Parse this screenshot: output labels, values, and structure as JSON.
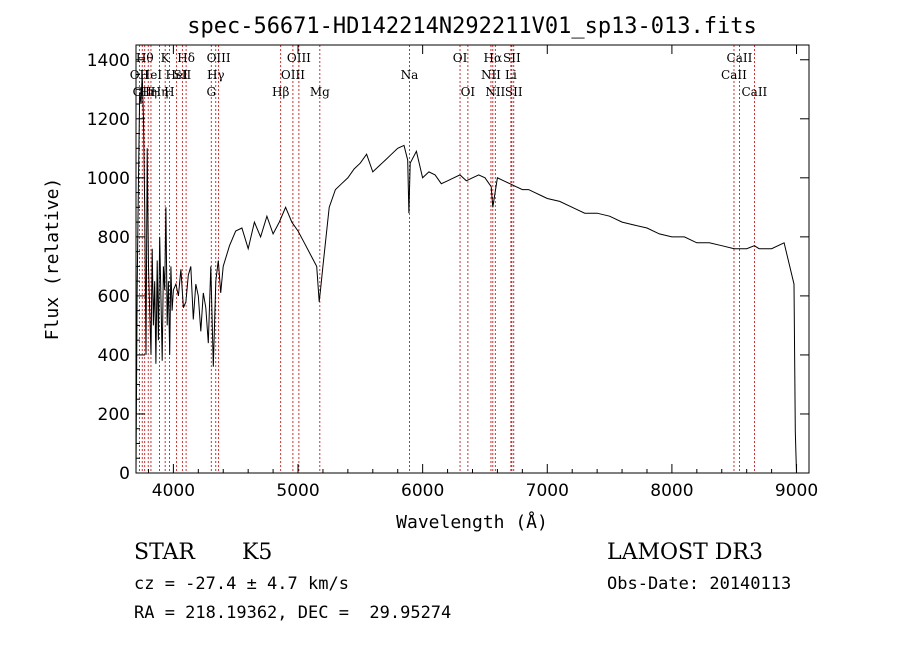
{
  "chart_data": {
    "type": "line",
    "title": "spec-56671-HD142214N292211V01_sp13-013.fits",
    "xlabel": "Wavelength (Å)",
    "ylabel": "Flux (relative)",
    "xlim": [
      3700,
      9100
    ],
    "ylim": [
      0,
      1450
    ],
    "xticks": [
      4000,
      5000,
      6000,
      7000,
      8000,
      9000
    ],
    "yticks": [
      0,
      200,
      400,
      600,
      800,
      1000,
      1200,
      1400
    ],
    "series": [
      {
        "x": [
          3700,
          3710,
          3720,
          3730,
          3740,
          3750,
          3760,
          3770,
          3780,
          3790,
          3800,
          3810,
          3820,
          3830,
          3840,
          3850,
          3860,
          3870,
          3880,
          3890,
          3900,
          3910,
          3920,
          3930,
          3940,
          3950,
          3960,
          3970,
          3980,
          3990,
          4000,
          4020,
          4040,
          4060,
          4080,
          4100,
          4120,
          4140,
          4160,
          4180,
          4200,
          4220,
          4240,
          4260,
          4280,
          4300,
          4320,
          4340,
          4360,
          4380,
          4400,
          4450,
          4500,
          4550,
          4600,
          4650,
          4700,
          4750,
          4800,
          4850,
          4900,
          4950,
          5000,
          5050,
          5100,
          5150,
          5170,
          5180,
          5200,
          5250,
          5300,
          5350,
          5400,
          5450,
          5500,
          5550,
          5600,
          5650,
          5700,
          5750,
          5800,
          5850,
          5880,
          5890,
          5900,
          5950,
          6000,
          6050,
          6100,
          6150,
          6200,
          6250,
          6300,
          6350,
          6400,
          6450,
          6500,
          6550,
          6563,
          6600,
          6650,
          6700,
          6750,
          6800,
          6850,
          6900,
          6950,
          7000,
          7100,
          7200,
          7300,
          7400,
          7500,
          7600,
          7700,
          7800,
          7900,
          8000,
          8100,
          8200,
          8300,
          8400,
          8500,
          8542,
          8600,
          8662,
          8700,
          8800,
          8900,
          8980,
          8990,
          9000
        ],
        "y": [
          0,
          640,
          1000,
          1290,
          1250,
          1350,
          1200,
          900,
          400,
          1100,
          700,
          550,
          400,
          760,
          500,
          650,
          370,
          720,
          450,
          800,
          600,
          380,
          700,
          620,
          900,
          500,
          650,
          400,
          700,
          550,
          620,
          640,
          600,
          690,
          560,
          580,
          670,
          700,
          520,
          640,
          600,
          480,
          610,
          560,
          440,
          700,
          360,
          650,
          720,
          610,
          700,
          770,
          820,
          830,
          760,
          850,
          800,
          870,
          810,
          850,
          900,
          850,
          820,
          780,
          740,
          700,
          580,
          620,
          700,
          900,
          960,
          980,
          1000,
          1030,
          1050,
          1080,
          1020,
          1040,
          1060,
          1080,
          1100,
          1110,
          1060,
          880,
          1050,
          1090,
          1000,
          1020,
          1010,
          980,
          990,
          1000,
          1010,
          990,
          1000,
          1010,
          1000,
          970,
          900,
          1000,
          990,
          980,
          970,
          960,
          960,
          950,
          940,
          930,
          920,
          900,
          880,
          880,
          870,
          850,
          840,
          830,
          810,
          800,
          800,
          780,
          780,
          770,
          760,
          760,
          760,
          770,
          760,
          760,
          780,
          640,
          140,
          0
        ]
      }
    ],
    "lines": [
      {
        "wl": 3727,
        "label": "OII",
        "row": 2
      },
      {
        "wl": 3750,
        "label": "OII",
        "row": 3
      },
      {
        "wl": 3770,
        "label": "Hθ",
        "row": 1
      },
      {
        "wl": 3798,
        "label": "Hη",
        "row": 3
      },
      {
        "wl": 3820,
        "label": "HeI",
        "row": 2
      },
      {
        "wl": 3889,
        "label": "Hη",
        "row": 3
      },
      {
        "wl": 3934,
        "label": "K",
        "row": 1
      },
      {
        "wl": 3968,
        "label": "H",
        "row": 3
      },
      {
        "wl": 4026,
        "label": "HeI",
        "row": 2
      },
      {
        "wl": 4072,
        "label": "SII",
        "row": 2
      },
      {
        "wl": 4102,
        "label": "Hδ",
        "row": 1
      },
      {
        "wl": 4304,
        "label": "G",
        "row": 3
      },
      {
        "wl": 4340,
        "label": "Hγ",
        "row": 2
      },
      {
        "wl": 4363,
        "label": "OIII",
        "row": 1
      },
      {
        "wl": 4861,
        "label": "Hβ",
        "row": 3
      },
      {
        "wl": 4959,
        "label": "OIII",
        "row": 2
      },
      {
        "wl": 5007,
        "label": "OIII",
        "row": 1
      },
      {
        "wl": 5175,
        "label": "Mg",
        "row": 3
      },
      {
        "wl": 5894,
        "label": "Na",
        "row": 2
      },
      {
        "wl": 6300,
        "label": "OI",
        "row": 1
      },
      {
        "wl": 6363,
        "label": "OI",
        "row": 3
      },
      {
        "wl": 6548,
        "label": "NII",
        "row": 2
      },
      {
        "wl": 6563,
        "label": "Hα",
        "row": 1
      },
      {
        "wl": 6583,
        "label": "NII",
        "row": 3
      },
      {
        "wl": 6708,
        "label": "Li",
        "row": 2
      },
      {
        "wl": 6716,
        "label": "SII",
        "row": 1
      },
      {
        "wl": 6731,
        "label": "SII",
        "row": 3
      },
      {
        "wl": 8498,
        "label": "CaII",
        "row": 2
      },
      {
        "wl": 8542,
        "label": "CaII",
        "row": 1
      },
      {
        "wl": 8662,
        "label": "CaII",
        "row": 3
      }
    ],
    "line_color": "#c00000",
    "grid": false,
    "legend": false
  },
  "info": {
    "object_class": "STAR",
    "subclass": "K5",
    "redshift": "cz = -27.4 ± 4.7 km/s",
    "coords": "RA = 218.19362, DEC =  29.95274",
    "survey": "LAMOST DR3",
    "obs_date": "Obs-Date: 20140113"
  }
}
